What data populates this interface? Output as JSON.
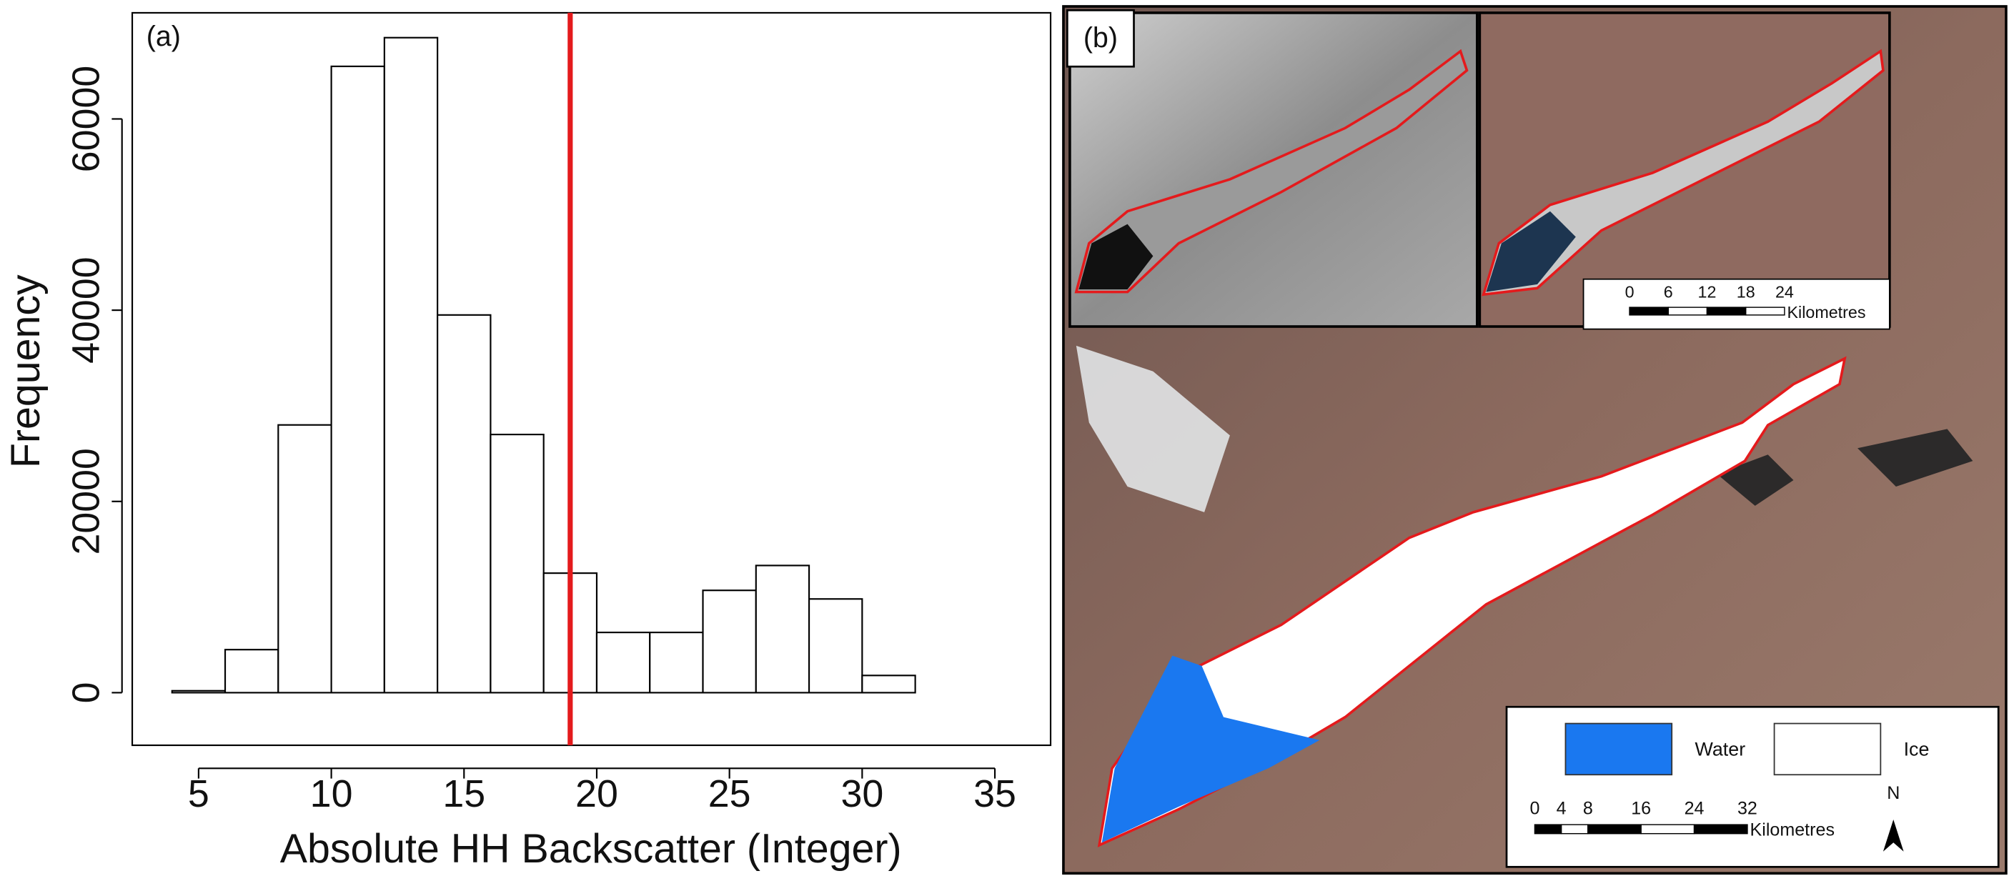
{
  "chart_data": {
    "type": "histogram",
    "panel_label": "(a)",
    "x_label": "Absolute HH Backscatter (Integer)",
    "y_label": "Frequency",
    "bins": [
      4,
      6,
      8,
      10,
      12,
      14,
      16,
      18,
      20,
      22,
      24,
      26,
      28,
      30,
      32,
      34,
      36
    ],
    "values": [
      200,
      4500,
      28000,
      65500,
      68500,
      39500,
      27000,
      12500,
      6300,
      6300,
      10700,
      13300,
      9800,
      1800,
      0,
      0
    ],
    "color": "#ffffff",
    "edge_color": "#000000",
    "xlim": [
      2.5,
      37.1
    ],
    "ylim": [
      -5500,
      71100
    ],
    "xticks": [
      5,
      10,
      15,
      20,
      25,
      30,
      35
    ],
    "yticks": [
      0,
      20000,
      40000,
      60000
    ],
    "threshold": {
      "x": 19,
      "color": "#e41a1c"
    }
  },
  "map": {
    "panel_label": "(b)",
    "inset_scale": {
      "ticks": [
        "0",
        "6",
        "12",
        "18",
        "24"
      ],
      "unit": "Kilometres"
    },
    "legend": {
      "items": [
        {
          "label": "Water",
          "color": "#1a78f0"
        },
        {
          "label": "Ice",
          "color": "#ffffff"
        }
      ],
      "scale_ticks": [
        "0",
        "4",
        "8",
        "16",
        "24",
        "32"
      ],
      "unit": "Kilometres",
      "north": "N"
    }
  }
}
